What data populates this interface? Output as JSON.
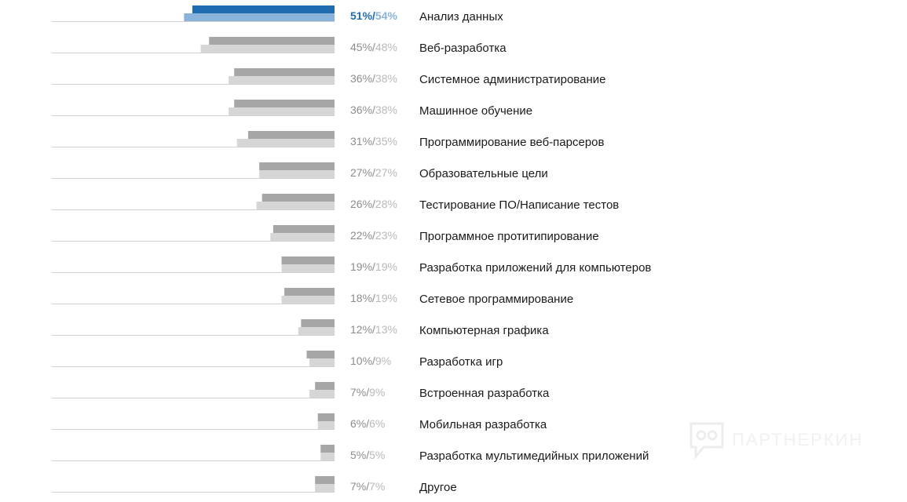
{
  "chart_data": {
    "type": "bar",
    "orientation": "horizontal",
    "categories": [
      "Анализ данных",
      "Веб-разработка",
      "Системное администратирование",
      "Машинное обучение",
      "Программирование веб-парсеров",
      "Образовательные цели",
      "Тестирование ПО/Написание тестов",
      "Программное протитипирование",
      "Разработка приложений для компьютеров",
      "Сетевое программирование",
      "Компьютерная графика",
      "Разработка игр",
      "Встроенная разработка",
      "Мобильная разработка",
      "Разработка мультимедийных приложений",
      "Другое"
    ],
    "series": [
      {
        "values": [
          51,
          45,
          36,
          36,
          31,
          27,
          26,
          22,
          19,
          18,
          12,
          10,
          7,
          6,
          5,
          7
        ]
      },
      {
        "values": [
          54,
          48,
          38,
          38,
          35,
          27,
          28,
          23,
          19,
          19,
          13,
          9,
          9,
          6,
          5,
          7
        ]
      }
    ],
    "labels": [
      [
        "51%",
        "54%"
      ],
      [
        "45%",
        "48%"
      ],
      [
        "36%",
        "38%"
      ],
      [
        "36%",
        "38%"
      ],
      [
        "31%",
        "35%"
      ],
      [
        "27%",
        "27%"
      ],
      [
        "26%",
        "28%"
      ],
      [
        "22%",
        "23%"
      ],
      [
        "19%",
        "19%"
      ],
      [
        "18%",
        "19%"
      ],
      [
        "12%",
        "13%"
      ],
      [
        "10%",
        "9%"
      ],
      [
        "7%",
        "9%"
      ],
      [
        "6%",
        "6%"
      ],
      [
        "5%",
        "5%"
      ],
      [
        "7%",
        "7%"
      ]
    ],
    "separator": "/",
    "xlim": [
      0,
      54
    ],
    "colors": {
      "highlight_series1": "#1f6db0",
      "highlight_series2": "#8ab3db",
      "series1": "#a6a6a6",
      "series2": "#d6d6d6",
      "highlight_label1": "#1f6db0",
      "highlight_label2": "#8ab3db",
      "label1": "#8c8c8c",
      "label2": "#b8b8b8",
      "baseline": "#d0d0d0"
    },
    "grid": false,
    "legend": "none"
  },
  "watermark": {
    "text": "ПАРТНЕРКИН",
    "icon": "chat-bubble-logo-icon"
  }
}
